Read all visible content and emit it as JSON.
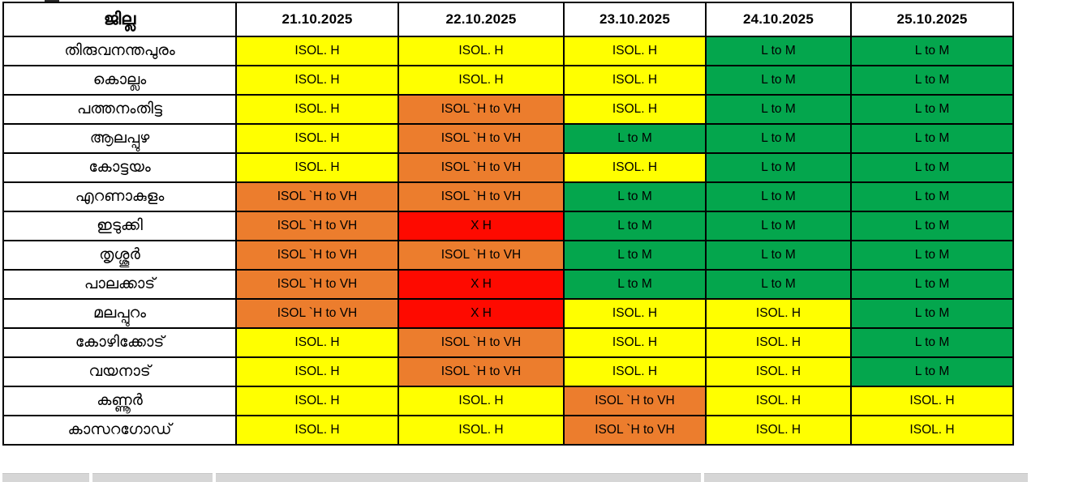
{
  "page": {
    "background": "#FFFFFF",
    "bottom_strip_color": "#D6D6D6"
  },
  "chart_data": {
    "type": "table",
    "district_header": "ജില്ല",
    "dates": [
      "21.10.2025",
      "22.10.2025",
      "23.10.2025",
      "24.10.2025",
      "25.10.2025"
    ],
    "legend": {
      "Y": {
        "name": "isolated-heavy",
        "label": "ISOL. H",
        "color": "#FFFF00",
        "text": "#000000"
      },
      "O": {
        "name": "isolated-heavy-to-very-heavy",
        "label": "ISOL `H to VH",
        "color": "#EC7D2D",
        "text": "#000000"
      },
      "R": {
        "name": "extremely-heavy",
        "label": "X H",
        "color": "#FE0A00",
        "text": "#000000"
      },
      "G": {
        "name": "light-to-moderate",
        "label": "L to M",
        "color": "#04A64D",
        "text": "#000000"
      }
    },
    "rows": [
      {
        "district": "തിരുവനന്തപുരം",
        "levels": [
          "Y",
          "Y",
          "Y",
          "G",
          "G"
        ]
      },
      {
        "district": "കൊല്ലം",
        "levels": [
          "Y",
          "Y",
          "Y",
          "G",
          "G"
        ]
      },
      {
        "district": "പത്തനംതിട്ട",
        "levels": [
          "Y",
          "O",
          "Y",
          "G",
          "G"
        ]
      },
      {
        "district": "ആലപ്പുഴ",
        "levels": [
          "Y",
          "O",
          "G",
          "G",
          "G"
        ]
      },
      {
        "district": "കോട്ടയം",
        "levels": [
          "Y",
          "O",
          "Y",
          "G",
          "G"
        ]
      },
      {
        "district": "എറണാകുളം",
        "levels": [
          "O",
          "O",
          "G",
          "G",
          "G"
        ]
      },
      {
        "district": "ഇടുക്കി",
        "levels": [
          "O",
          "R",
          "G",
          "G",
          "G"
        ]
      },
      {
        "district": "തൃശ്ശൂർ",
        "levels": [
          "O",
          "O",
          "G",
          "G",
          "G"
        ]
      },
      {
        "district": "പാലക്കാട്",
        "levels": [
          "O",
          "R",
          "G",
          "G",
          "G"
        ]
      },
      {
        "district": "മലപ്പുറം",
        "levels": [
          "O",
          "R",
          "Y",
          "Y",
          "G"
        ]
      },
      {
        "district": "കോഴിക്കോട്",
        "levels": [
          "Y",
          "O",
          "Y",
          "Y",
          "G"
        ]
      },
      {
        "district": "വയനാട്",
        "levels": [
          "Y",
          "O",
          "Y",
          "Y",
          "G"
        ]
      },
      {
        "district": "കണ്ണൂർ",
        "levels": [
          "Y",
          "Y",
          "O",
          "Y",
          "Y"
        ]
      },
      {
        "district": "കാസറഗോഡ്",
        "levels": [
          "Y",
          "Y",
          "O",
          "Y",
          "Y"
        ]
      }
    ]
  }
}
